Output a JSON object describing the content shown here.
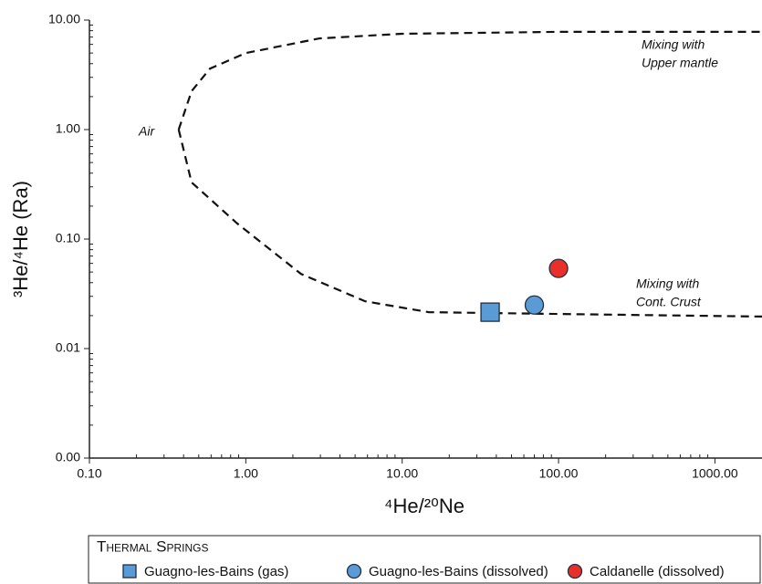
{
  "chart_data": {
    "type": "scatter",
    "y_label": "³He/⁴He (Ra)",
    "x_label": "⁴He/²⁰Ne",
    "log_x": true,
    "log_y": true,
    "minor_ticks": true,
    "xlim": [
      0.1,
      2000
    ],
    "ylim": [
      0.001,
      10
    ],
    "xticks": [
      {
        "value": 0.1,
        "label": "0.10"
      },
      {
        "value": 1,
        "label": "1.00"
      },
      {
        "value": 10,
        "label": "10.00"
      },
      {
        "value": 100,
        "label": "100.00"
      },
      {
        "value": 1000,
        "label": "1000.00"
      }
    ],
    "yticks": [
      {
        "value": 0.001,
        "label": "0.00"
      },
      {
        "value": 0.01,
        "label": "0.01"
      },
      {
        "value": 0.1,
        "label": "0.10"
      },
      {
        "value": 1,
        "label": "1.00"
      },
      {
        "value": 10,
        "label": "10.00"
      }
    ],
    "series": [
      {
        "name": "Guagno-les-Bains (gas)",
        "marker": "square",
        "color": "#5b9bd5",
        "x": [
          36.5
        ],
        "values": [
          0.0215
        ]
      },
      {
        "name": "Guagno-les-Bains (dissolved)",
        "marker": "circle",
        "color": "#5b9bd5",
        "x": [
          70
        ],
        "values": [
          0.025
        ]
      },
      {
        "name": "Caldanelle (dissolved)",
        "marker": "circle",
        "color": "#e8302a",
        "x": [
          100
        ],
        "values": [
          0.054
        ]
      }
    ],
    "curves": [
      {
        "x": [
          0.372,
          0.45,
          0.59,
          1.0,
          2.96,
          10,
          100,
          2000
        ],
        "values": [
          1.0,
          2.24,
          3.6,
          5.0,
          6.8,
          7.5,
          7.8,
          7.8
        ]
      },
      {
        "x": [
          0.372,
          0.45,
          0.88,
          2.26,
          5.8,
          14.8,
          100,
          2000
        ],
        "values": [
          1.0,
          0.33,
          0.139,
          0.048,
          0.027,
          0.0215,
          0.0207,
          0.0196
        ]
      }
    ],
    "annotations": [
      [
        "Air"
      ],
      [
        "Mixing with",
        "Upper mantle"
      ],
      [
        "Mixing with",
        "Cont. Crust"
      ]
    ],
    "legend_title": "Thermal Springs",
    "legend": "bottom"
  }
}
